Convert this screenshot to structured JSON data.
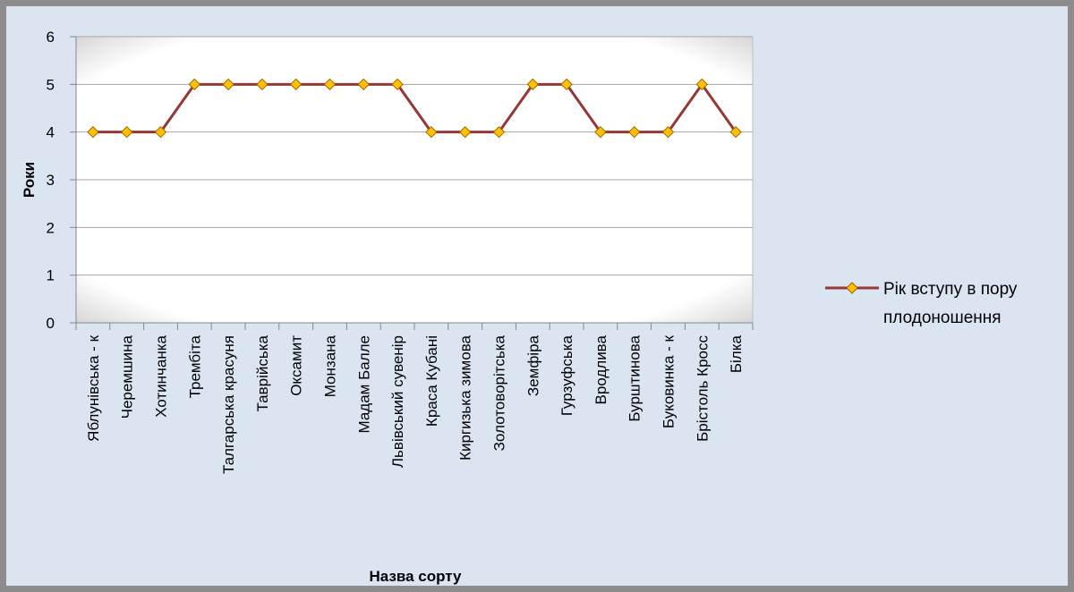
{
  "chart_data": {
    "type": "line",
    "title": "",
    "xlabel": "Назва сорту",
    "ylabel": "Роки",
    "ylim": [
      0,
      6
    ],
    "y_ticks": [
      0,
      1,
      2,
      3,
      4,
      5,
      6
    ],
    "grid": true,
    "legend_position": "right",
    "categories": [
      "Яблунівська - к",
      "Черемшина",
      "Хотинчанка",
      "Трембіта",
      "Талгарська красуня",
      "Таврійська",
      "Оксамит",
      "Монзана",
      "Мадам Балле",
      "Львівський сувенір",
      "Краса Кубані",
      "Киргизька зимова",
      "Золотоворітська",
      "Земфіра",
      "Гурзуфська",
      "Вродлива",
      "Бурштинова",
      "Буковинка - к",
      "Брістоль Кросс",
      "Білка"
    ],
    "series": [
      {
        "name": "Рік вступу в пору плодоношення",
        "values": [
          4,
          4,
          4,
          5,
          5,
          5,
          5,
          5,
          5,
          5,
          4,
          4,
          4,
          5,
          5,
          4,
          4,
          4,
          5,
          4
        ],
        "line_color": "#953735",
        "marker_fill": "#ffc000",
        "marker_stroke": "#9c6500"
      }
    ],
    "legend_lines": [
      "Рік вступу в пору",
      "плодоношення"
    ]
  },
  "colors": {
    "frame_background": "#dbe5f1",
    "frame_border": "#8c8c8c",
    "plot_background": "#ffffff",
    "gridline": "#a6a6a6"
  }
}
